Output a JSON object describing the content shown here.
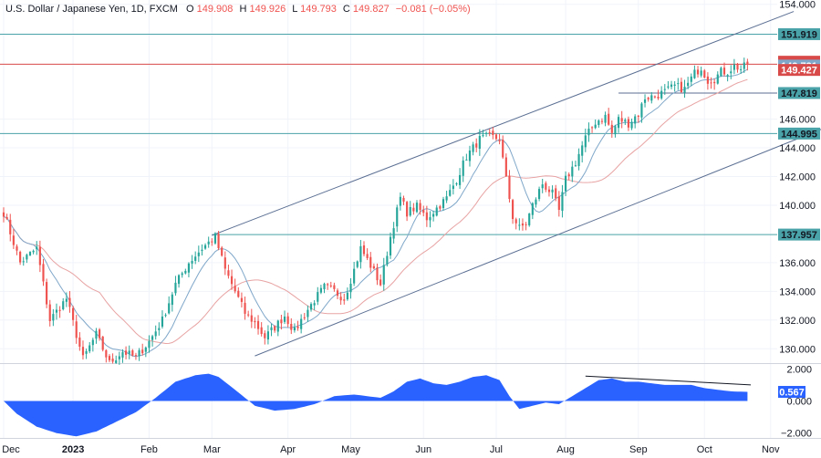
{
  "header": {
    "symbol": "U.S. Dollar / Japanese Yen, 1D, FXCM",
    "o_label": "O",
    "o_value": "149.908",
    "h_label": "H",
    "h_value": "149.926",
    "l_label": "L",
    "l_value": "149.793",
    "c_label": "C",
    "c_value": "149.827",
    "change": "−0.081 (−0.05%)"
  },
  "colors": {
    "up": "#26a69a",
    "down": "#ef5350",
    "ma_fast": "#7fa7c9",
    "ma_slow": "#e8a3a3",
    "channel": "#5b6f93",
    "level": "#4aa3a8",
    "price_line": "#d84a4a",
    "osc_fill": "#2962ff"
  },
  "chart_data": {
    "type": "candlestick",
    "price_axis": {
      "ylim": [
        129.0,
        154.3
      ],
      "ticks": [
        "154.000",
        "146.000",
        "144.000",
        "142.000",
        "140.000",
        "136.000",
        "134.000",
        "132.000",
        "130.000"
      ]
    },
    "osc_axis": {
      "ylim": [
        -2.3,
        2.3
      ],
      "ticks": [
        "2.000",
        "0.000",
        "−2.000"
      ]
    },
    "x_labels": [
      {
        "label": "Dec",
        "i": 0
      },
      {
        "label": "2023",
        "i": 21,
        "bold": true
      },
      {
        "label": "Feb",
        "i": 44
      },
      {
        "label": "Mar",
        "i": 63
      },
      {
        "label": "Apr",
        "i": 86
      },
      {
        "label": "May",
        "i": 105
      },
      {
        "label": "Jun",
        "i": 127
      },
      {
        "label": "Jul",
        "i": 149
      },
      {
        "label": "Aug",
        "i": 170
      },
      {
        "label": "Sep",
        "i": 192
      },
      {
        "label": "Oct",
        "i": 212
      },
      {
        "label": "Nov",
        "i": 232
      }
    ],
    "bars_visible": 226,
    "bars_total_span": 234,
    "price_anchors": [
      [
        0,
        139.5
      ],
      [
        5,
        136.0
      ],
      [
        10,
        137.0
      ],
      [
        14,
        132.0
      ],
      [
        19,
        133.5
      ],
      [
        24,
        129.3
      ],
      [
        28,
        131.0
      ],
      [
        32,
        129.0
      ],
      [
        36,
        129.8
      ],
      [
        40,
        129.4
      ],
      [
        44,
        130.5
      ],
      [
        48,
        132.0
      ],
      [
        52,
        134.5
      ],
      [
        56,
        136.0
      ],
      [
        60,
        137.0
      ],
      [
        64,
        137.8
      ],
      [
        67,
        135.5
      ],
      [
        70,
        134.0
      ],
      [
        73,
        132.5
      ],
      [
        76,
        131.8
      ],
      [
        79,
        130.8
      ],
      [
        82,
        131.5
      ],
      [
        85,
        132.3
      ],
      [
        88,
        131.2
      ],
      [
        91,
        132.4
      ],
      [
        94,
        133.4
      ],
      [
        97,
        134.3
      ],
      [
        100,
        134.0
      ],
      [
        103,
        133.5
      ],
      [
        106,
        135.5
      ],
      [
        108,
        137.0
      ],
      [
        111,
        135.8
      ],
      [
        114,
        134.5
      ],
      [
        117,
        137.8
      ],
      [
        120,
        140.5
      ],
      [
        122,
        139.5
      ],
      [
        125,
        139.9
      ],
      [
        128,
        139.1
      ],
      [
        131,
        139.8
      ],
      [
        134,
        140.5
      ],
      [
        137,
        141.8
      ],
      [
        140,
        143.4
      ],
      [
        144,
        144.6
      ],
      [
        147,
        144.8
      ],
      [
        150,
        144.6
      ],
      [
        152,
        141.8
      ],
      [
        154,
        139.2
      ],
      [
        156,
        138.4
      ],
      [
        158,
        138.7
      ],
      [
        160,
        140.0
      ],
      [
        163,
        141.5
      ],
      [
        166,
        140.8
      ],
      [
        168,
        139.6
      ],
      [
        170,
        141.8
      ],
      [
        173,
        143.0
      ],
      [
        176,
        144.7
      ],
      [
        179,
        145.8
      ],
      [
        182,
        146.2
      ],
      [
        184,
        145.0
      ],
      [
        186,
        146.0
      ],
      [
        189,
        145.7
      ],
      [
        192,
        146.4
      ],
      [
        194,
        147.5
      ],
      [
        197,
        147.6
      ],
      [
        200,
        147.9
      ],
      [
        203,
        148.3
      ],
      [
        206,
        148.1
      ],
      [
        209,
        149.2
      ],
      [
        211,
        149.6
      ],
      [
        213,
        148.7
      ],
      [
        215,
        148.8
      ],
      [
        217,
        149.3
      ],
      [
        219,
        149.3
      ],
      [
        221,
        149.7
      ],
      [
        223,
        149.5
      ],
      [
        225,
        149.8
      ]
    ],
    "ma_fast_period": 10,
    "ma_slow_period": 30,
    "channel_upper": {
      "from": [
        63,
        137.9
      ],
      "to": [
        239,
        153.5
      ]
    },
    "channel_lower": {
      "from": [
        76,
        129.5
      ],
      "to": [
        255,
        146.0
      ]
    },
    "horizontal_levels": [
      {
        "value": 151.919,
        "color": "level"
      },
      {
        "value": 144.995,
        "color": "level"
      },
      {
        "value": 137.957,
        "color": "level",
        "from_i": 63
      },
      {
        "value": 147.819,
        "color": "channel",
        "from_i": 186
      }
    ],
    "price_line": {
      "value": 149.827,
      "color": "price_line"
    },
    "price_badges": [
      {
        "label": "151.919",
        "value": 151.919,
        "color": "level"
      },
      {
        "label": "150.000",
        "value": 150.0,
        "color": "price_line"
      },
      {
        "label": "149.827",
        "value": 149.827,
        "color": "price_line"
      },
      {
        "label": "149.731",
        "value": 149.731,
        "color": "ma_fast"
      },
      {
        "label": "149.427",
        "value": 149.427,
        "color": "price_line"
      },
      {
        "label": "147.819",
        "value": 147.819,
        "color": "level"
      },
      {
        "label": "144.995",
        "value": 144.995,
        "color": "level"
      },
      {
        "label": "137.957",
        "value": 137.957,
        "color": "level"
      }
    ],
    "oscillator": {
      "badge": "0.567",
      "anchors": [
        [
          0,
          0.0
        ],
        [
          4,
          -0.8
        ],
        [
          10,
          -1.6
        ],
        [
          16,
          -2.0
        ],
        [
          22,
          -2.2
        ],
        [
          28,
          -1.9
        ],
        [
          34,
          -1.3
        ],
        [
          40,
          -0.7
        ],
        [
          46,
          0.2
        ],
        [
          52,
          1.2
        ],
        [
          58,
          1.6
        ],
        [
          62,
          1.7
        ],
        [
          65,
          1.5
        ],
        [
          70,
          0.7
        ],
        [
          76,
          -0.3
        ],
        [
          82,
          -0.6
        ],
        [
          88,
          -0.5
        ],
        [
          94,
          -0.2
        ],
        [
          100,
          0.3
        ],
        [
          106,
          0.4
        ],
        [
          110,
          0.3
        ],
        [
          114,
          0.2
        ],
        [
          118,
          0.6
        ],
        [
          122,
          1.2
        ],
        [
          126,
          1.4
        ],
        [
          130,
          1.1
        ],
        [
          134,
          1.0
        ],
        [
          138,
          1.2
        ],
        [
          142,
          1.5
        ],
        [
          146,
          1.6
        ],
        [
          150,
          1.3
        ],
        [
          153,
          0.3
        ],
        [
          156,
          -0.5
        ],
        [
          160,
          -0.3
        ],
        [
          164,
          -0.1
        ],
        [
          168,
          -0.2
        ],
        [
          172,
          0.3
        ],
        [
          176,
          0.8
        ],
        [
          180,
          1.3
        ],
        [
          184,
          1.4
        ],
        [
          188,
          1.2
        ],
        [
          192,
          1.2
        ],
        [
          196,
          1.1
        ],
        [
          200,
          1.0
        ],
        [
          204,
          1.0
        ],
        [
          208,
          1.0
        ],
        [
          212,
          0.8
        ],
        [
          216,
          0.7
        ],
        [
          220,
          0.6
        ],
        [
          225,
          0.567
        ]
      ],
      "trendline": {
        "from": [
          176,
          1.55
        ],
        "to": [
          226,
          1.0
        ]
      }
    }
  }
}
